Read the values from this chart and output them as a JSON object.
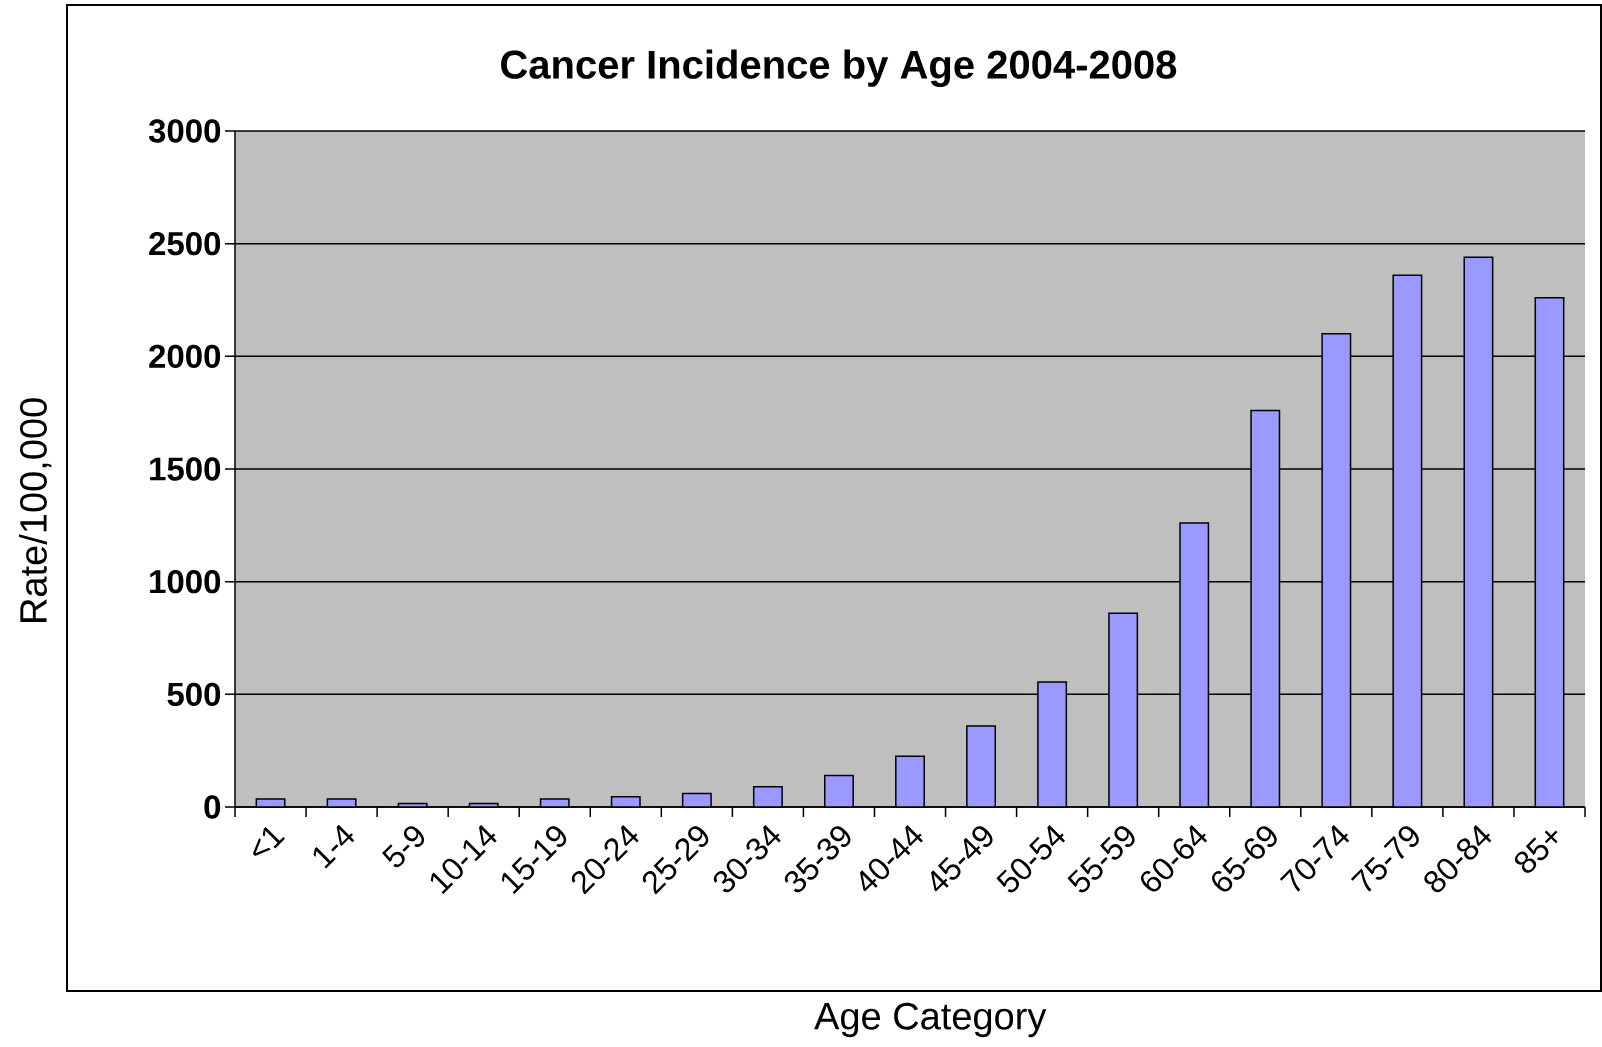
{
  "chart_data": {
    "type": "bar",
    "title": "Cancer Incidence by Age 2004-2008",
    "xlabel": "Age Category",
    "ylabel": "Rate/100,000",
    "categories": [
      "<1",
      "1-4",
      "5-9",
      "10-14",
      "15-19",
      "20-24",
      "25-29",
      "30-34",
      "35-39",
      "40-44",
      "45-49",
      "50-54",
      "55-59",
      "60-64",
      "65-69",
      "70-74",
      "75-79",
      "80-84",
      "85+"
    ],
    "values": [
      35,
      35,
      15,
      15,
      35,
      45,
      60,
      90,
      140,
      225,
      360,
      555,
      860,
      1260,
      1760,
      2100,
      2360,
      2440,
      2260
    ],
    "color": "#9999ff",
    "ylim": [
      0,
      3000
    ],
    "yticks": [
      0,
      500,
      1000,
      1500,
      2000,
      2500,
      3000
    ],
    "grid": "y"
  }
}
